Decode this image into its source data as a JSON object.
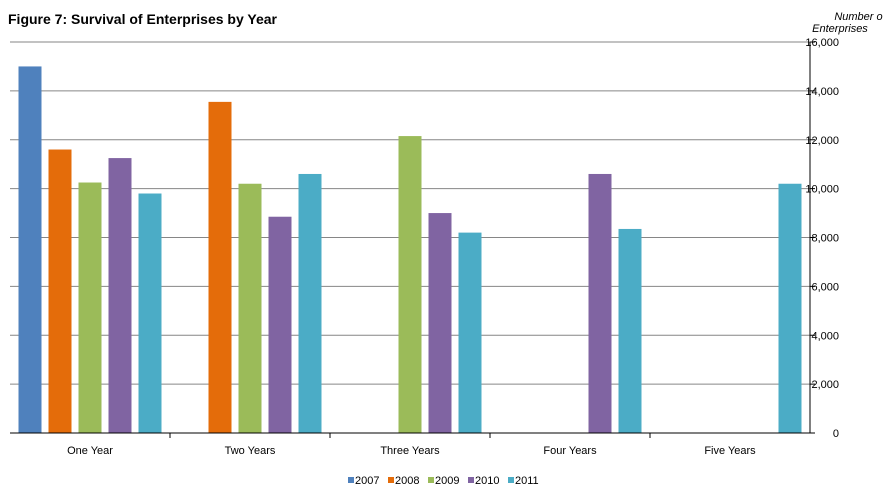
{
  "chart_data": {
    "type": "bar",
    "title": "Figure 7: Survival of Enterprises by Year",
    "ylabel_lines": [
      "Number of",
      "Enterprises"
    ],
    "xlabel": "",
    "categories": [
      "One Year",
      "Two Years",
      "Three Years",
      "Four Years",
      "Five Years"
    ],
    "series": [
      {
        "name": "2007",
        "color": "#4f81bd",
        "values": [
          15000,
          null,
          null,
          null,
          null
        ]
      },
      {
        "name": "2008",
        "color": "#e46c0a",
        "values": [
          11600,
          13550,
          null,
          null,
          null
        ]
      },
      {
        "name": "2009",
        "color": "#9bbb59",
        "values": [
          10250,
          10200,
          12150,
          null,
          null
        ]
      },
      {
        "name": "2010",
        "color": "#8064a2",
        "values": [
          11250,
          8850,
          9000,
          10600,
          null
        ]
      },
      {
        "name": "2011",
        "color": "#4bacc6",
        "values": [
          9800,
          10600,
          8200,
          8350,
          10200
        ]
      }
    ],
    "ylim": [
      0,
      16000
    ],
    "yticks": [
      "0",
      "2,000",
      "4,000",
      "6,000",
      "8,000",
      "10,000",
      "12,000",
      "14,000",
      "16,000"
    ],
    "y_axis_side": "right",
    "grid": true,
    "legend_position": "bottom"
  }
}
